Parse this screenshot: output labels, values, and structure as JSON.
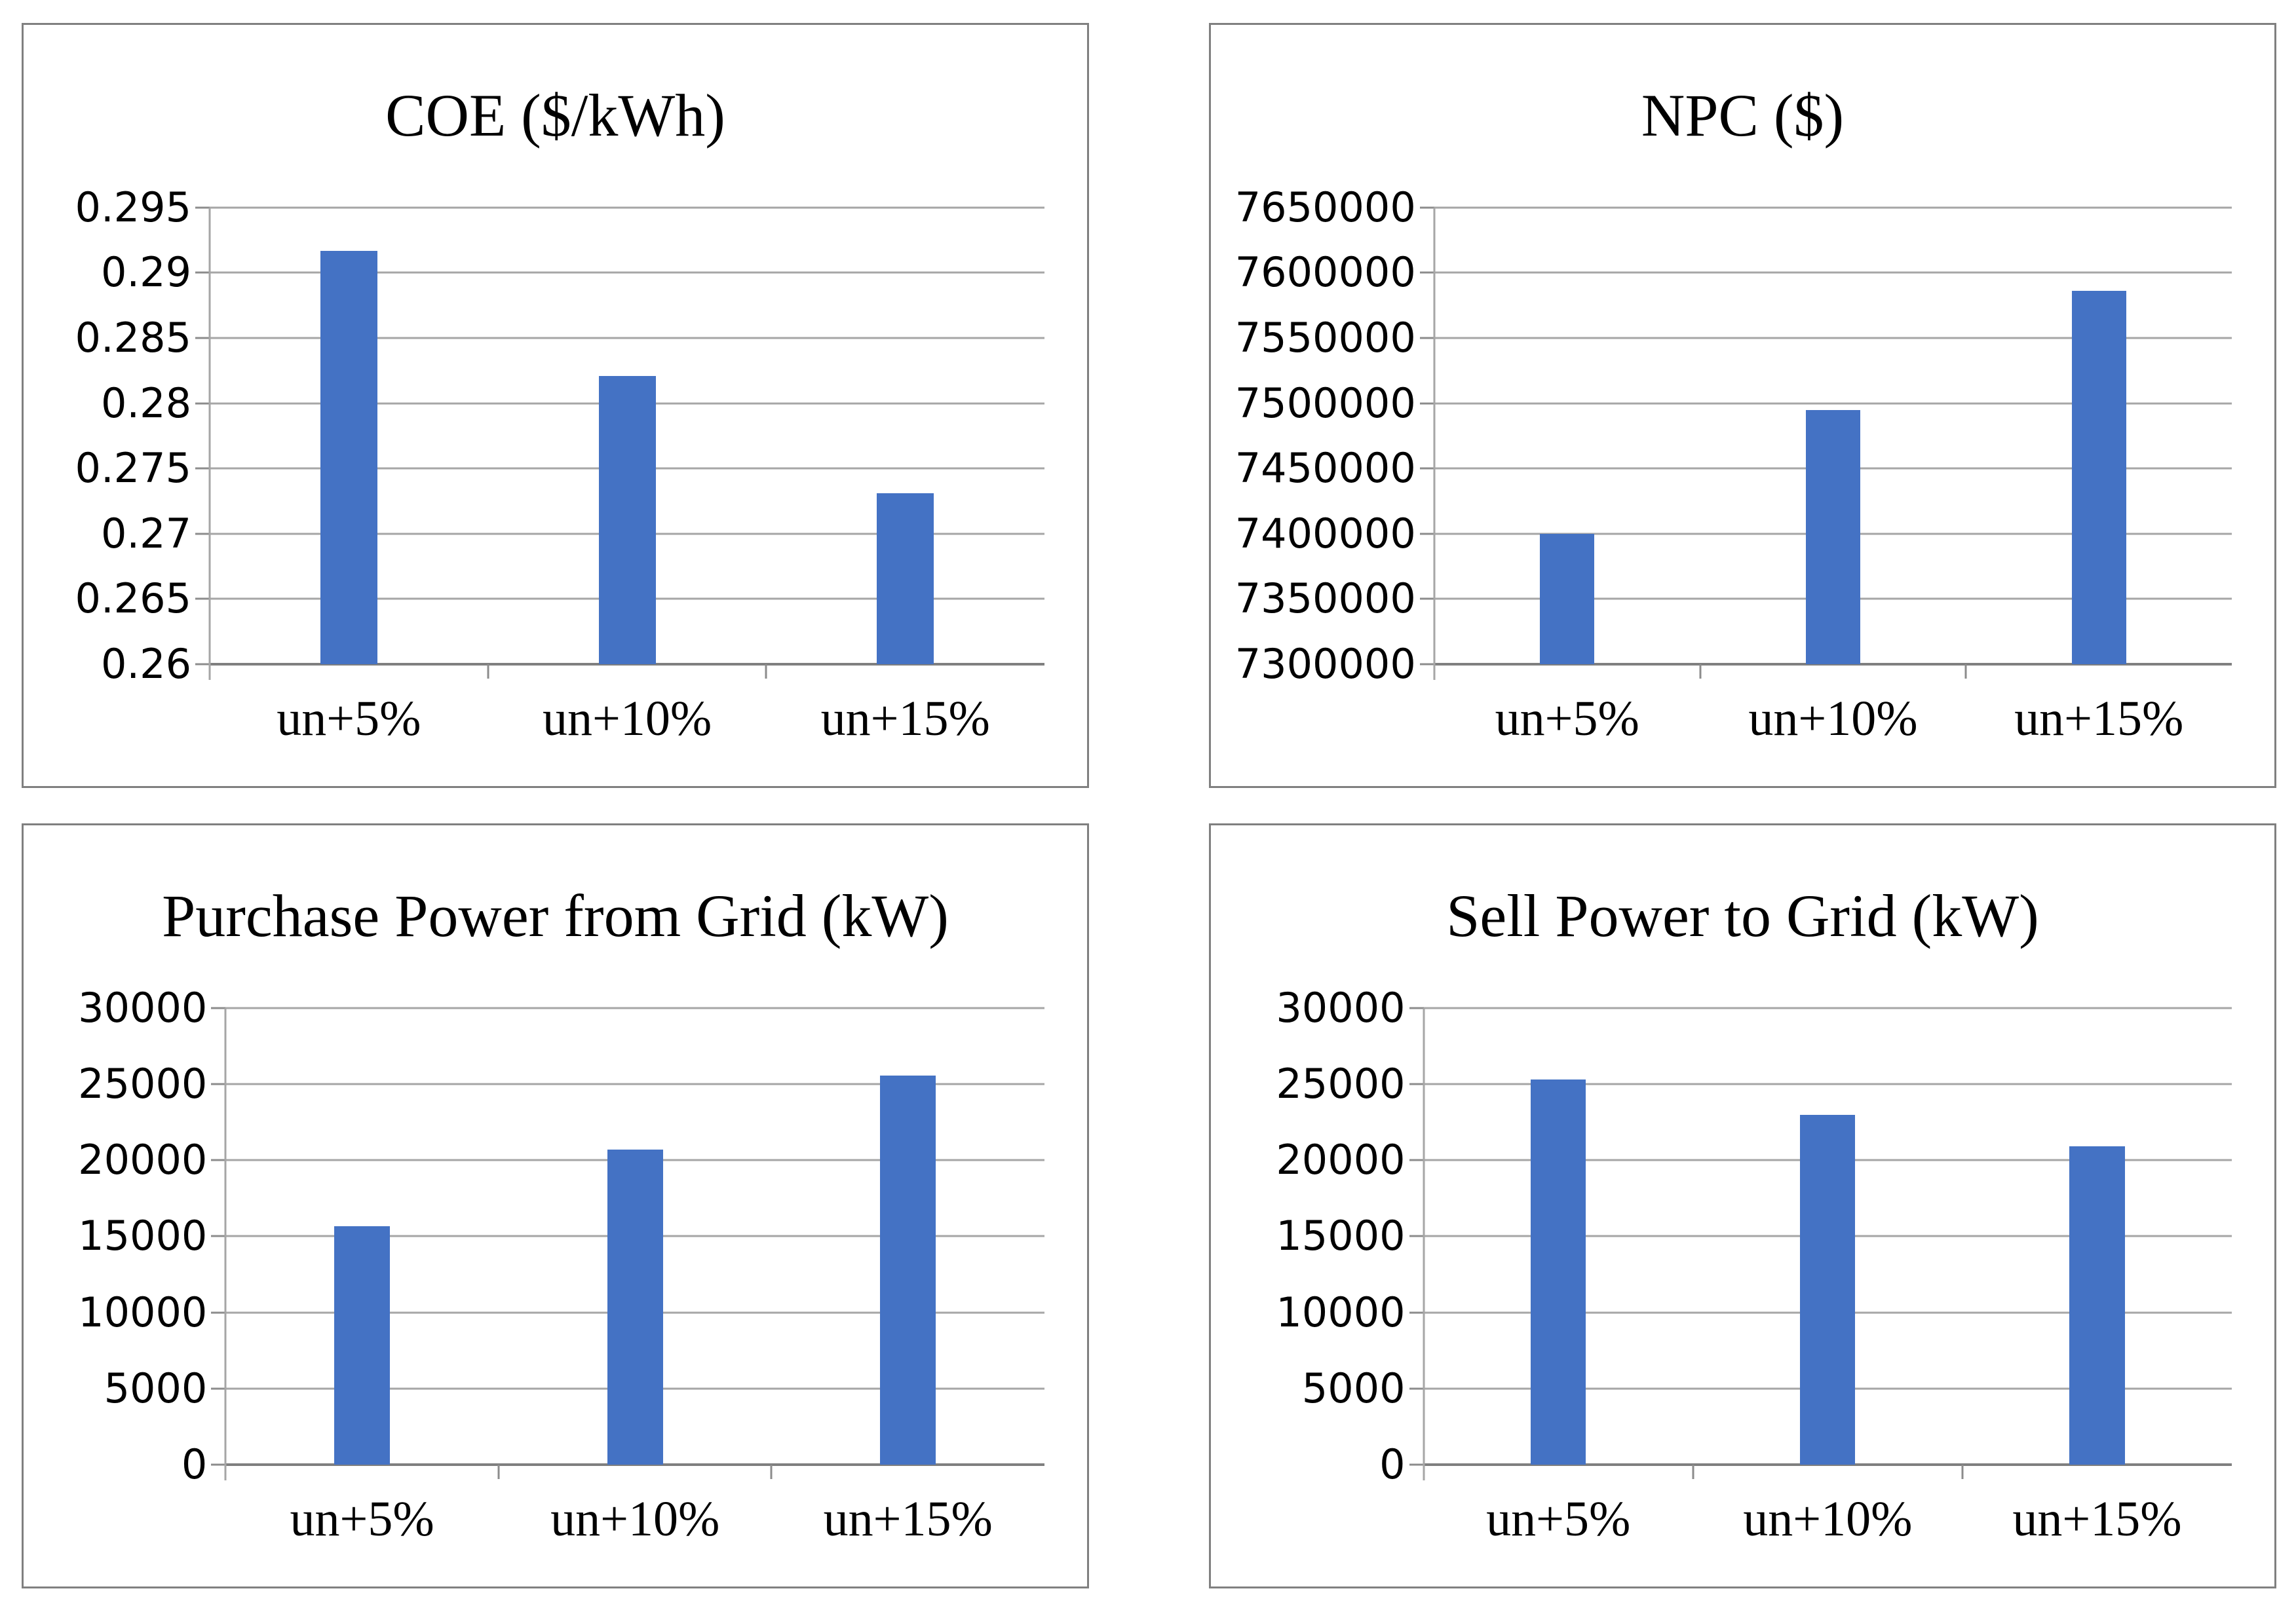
{
  "figure": {
    "background": "#FFFFFF",
    "layout": "2x2-grid-of-bar-charts"
  },
  "colors": {
    "bar": "#4472C4",
    "gridline": "#A6A6A6",
    "axis_line": "#7F7F7F",
    "tick": "#8C8C8C",
    "panel_border": "#808080",
    "text": "#000000"
  },
  "chart_data": [
    {
      "type": "bar",
      "title": "COE ($/kWh)",
      "categories": [
        "un+5%",
        "un+10%",
        "un+15%"
      ],
      "values": [
        0.2917,
        0.2821,
        0.2731
      ],
      "xlabel": "",
      "ylabel": "",
      "ylim": [
        0.26,
        0.295
      ],
      "ytick_interval": 0.005,
      "yticks": [
        "0.295",
        "0.29",
        "0.285",
        "0.28",
        "0.275",
        "0.27",
        "0.265",
        "0.26"
      ],
      "grid": true,
      "legend": false,
      "plot_left_pct": 17.5
    },
    {
      "type": "bar",
      "title": "NPC ($)",
      "categories": [
        "un+5%",
        "un+10%",
        "un+15%"
      ],
      "values": [
        7400000,
        7495000,
        7586000
      ],
      "xlabel": "",
      "ylabel": "",
      "ylim": [
        7300000,
        7650000
      ],
      "ytick_interval": 50000,
      "yticks": [
        "7650000",
        "7600000",
        "7550000",
        "7500000",
        "7450000",
        "7400000",
        "7350000",
        "7300000"
      ],
      "grid": true,
      "legend": false,
      "plot_left_pct": 21
    },
    {
      "type": "bar",
      "title": "Purchase Power from Grid (kW)",
      "categories": [
        "un+5%",
        "un+10%",
        "un+15%"
      ],
      "values": [
        15650,
        20700,
        25550
      ],
      "xlabel": "",
      "ylabel": "",
      "ylim": [
        0,
        30000
      ],
      "ytick_interval": 5000,
      "yticks": [
        "30000",
        "25000",
        "20000",
        "15000",
        "10000",
        "5000",
        "0"
      ],
      "grid": true,
      "legend": false,
      "plot_left_pct": 19
    },
    {
      "type": "bar",
      "title": "Sell Power to Grid (kW)",
      "categories": [
        "un+5%",
        "un+10%",
        "un+15%"
      ],
      "values": [
        25300,
        23000,
        20900
      ],
      "xlabel": "",
      "ylabel": "",
      "ylim": [
        0,
        30000
      ],
      "ytick_interval": 5000,
      "yticks": [
        "30000",
        "25000",
        "20000",
        "15000",
        "10000",
        "5000",
        "0"
      ],
      "grid": true,
      "legend": false,
      "plot_left_pct": 20
    }
  ],
  "bar_width_pct_of_category": 20.5,
  "plot_right_pct": 96
}
